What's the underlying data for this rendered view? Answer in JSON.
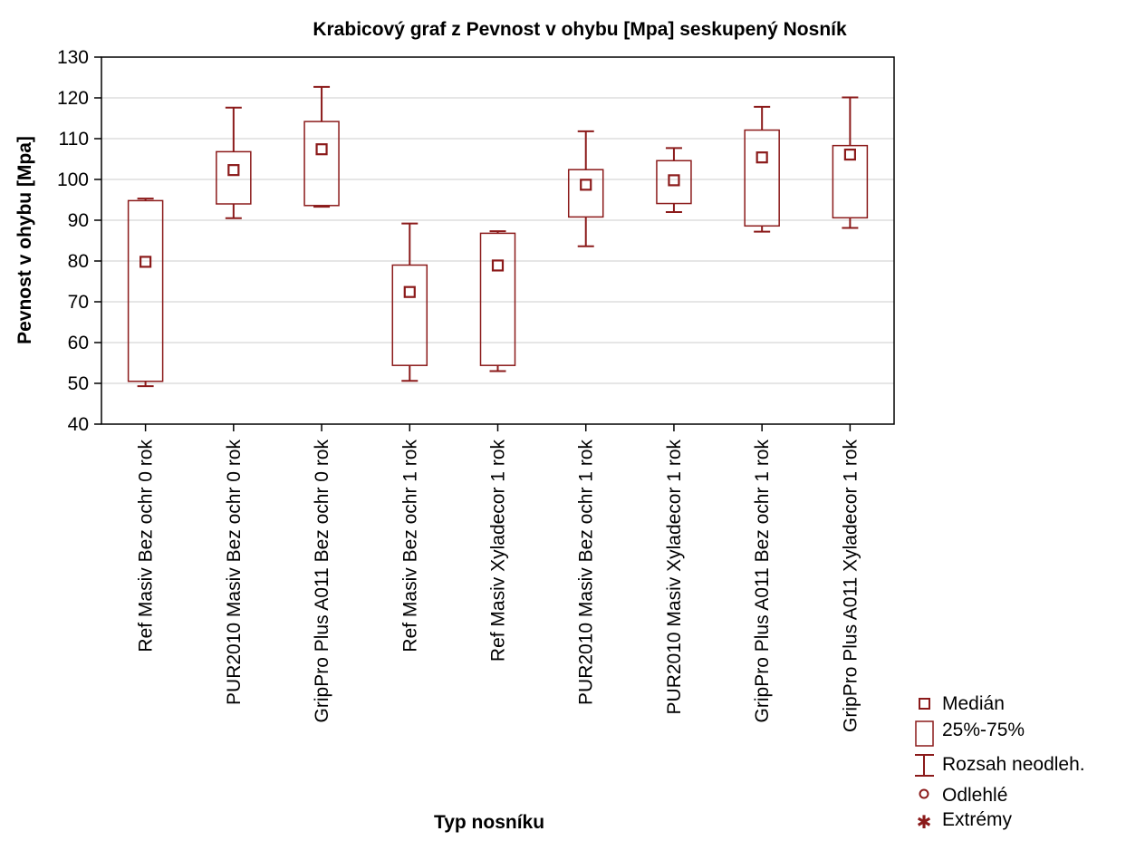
{
  "chart_data": {
    "type": "box",
    "title": "Krabicový graf z Pevnost v ohybu [Mpa] seskupený Nosník",
    "xlabel": "Typ nosníku",
    "ylabel": "Pevnost v ohybu [Mpa]",
    "ylim": [
      40,
      130
    ],
    "yticks": [
      40,
      50,
      60,
      70,
      80,
      90,
      100,
      110,
      120,
      130
    ],
    "grid": true,
    "legend_position": "bottom-right",
    "color": "#8b1a1a",
    "categories": [
      "Ref Masiv Bez ochr 0 rok",
      "PUR2010 Masiv Bez ochr 0 rok",
      "GripPro Plus A011 Bez ochr 0 rok",
      "Ref Masiv Bez ochr 1 rok",
      "Ref Masiv Xyladecor 1 rok",
      "PUR2010 Masiv Bez ochr 1 rok",
      "PUR2010 Masiv Xyladecor 1 rok",
      "GripPro Plus A011 Bez ochr 1 rok",
      "GripPro Plus A011 Xyladecor 1 rok"
    ],
    "boxes": [
      {
        "median": 79.8,
        "q1": 50.5,
        "q3": 94.8,
        "min": 49.3,
        "max": 95.3
      },
      {
        "median": 102.3,
        "q1": 94.0,
        "q3": 106.8,
        "min": 90.5,
        "max": 117.6
      },
      {
        "median": 107.4,
        "q1": 93.6,
        "q3": 114.2,
        "min": 93.3,
        "max": 122.7
      },
      {
        "median": 72.4,
        "q1": 54.4,
        "q3": 79.0,
        "min": 50.6,
        "max": 89.2
      },
      {
        "median": 78.9,
        "q1": 54.4,
        "q3": 86.8,
        "min": 53.0,
        "max": 87.3
      },
      {
        "median": 98.7,
        "q1": 90.8,
        "q3": 102.4,
        "min": 83.6,
        "max": 111.8
      },
      {
        "median": 99.8,
        "q1": 94.1,
        "q3": 104.6,
        "min": 92.0,
        "max": 107.7
      },
      {
        "median": 105.4,
        "q1": 88.6,
        "q3": 112.1,
        "min": 87.2,
        "max": 117.8
      },
      {
        "median": 106.1,
        "q1": 90.6,
        "q3": 108.3,
        "min": 88.1,
        "max": 120.1
      }
    ],
    "legend": [
      "Medián",
      "25%-75%",
      "Rozsah neodleh.",
      "Odlehlé",
      "Extrémy"
    ]
  }
}
